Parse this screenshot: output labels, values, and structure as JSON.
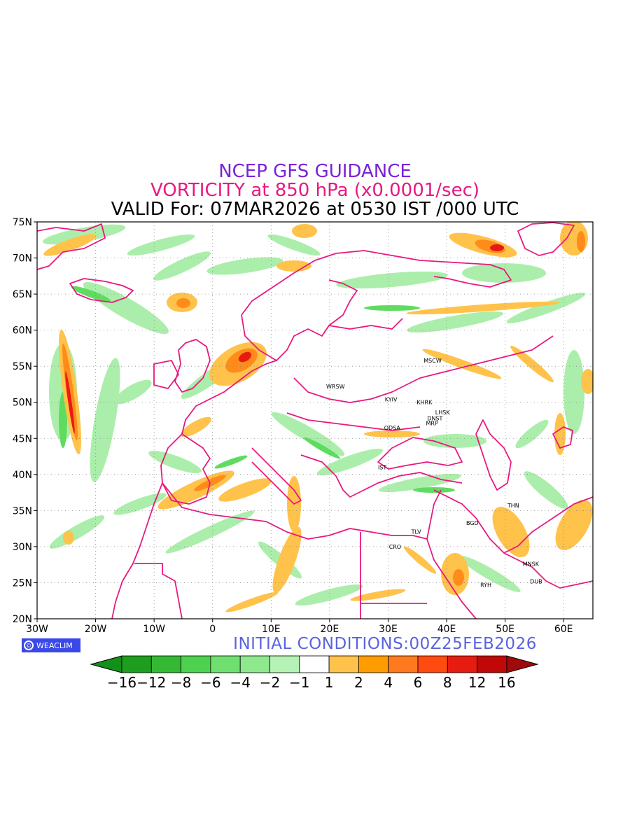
{
  "titles": {
    "line1": "NCEP GFS GUIDANCE",
    "line2": "VORTICITY at 850 hPa (x0.0001/sec)",
    "line3": "VALID For: 07MAR2026 at 0530 IST /000 UTC"
  },
  "colors": {
    "title1": "#7b22d9",
    "title2": "#e8197f",
    "title3": "#000000",
    "coastline": "#e8197f",
    "init": "#5a63e0",
    "brand_bg": "#3a48e8"
  },
  "map": {
    "lon_range": [
      -30,
      65
    ],
    "lat_range": [
      20,
      75
    ],
    "x_ticks": [
      "30W",
      "20W",
      "10W",
      "0",
      "10E",
      "20E",
      "30E",
      "40E",
      "50E",
      "60E"
    ],
    "y_ticks": [
      "75N",
      "70N",
      "65N",
      "60N",
      "55N",
      "50N",
      "45N",
      "40N",
      "35N",
      "30N",
      "25N",
      "20N"
    ],
    "x_tick_values": [
      -30,
      -20,
      -10,
      0,
      10,
      20,
      30,
      40,
      50,
      60
    ],
    "y_tick_values": [
      75,
      70,
      65,
      60,
      55,
      50,
      45,
      40,
      35,
      30,
      25,
      20
    ],
    "grid": "dotted",
    "cities": [
      {
        "name": "MSCW",
        "lon": 37.6,
        "lat": 55.8
      },
      {
        "name": "WRSW",
        "lon": 21.0,
        "lat": 52.2
      },
      {
        "name": "KYIV",
        "lon": 30.5,
        "lat": 50.4
      },
      {
        "name": "KHRK",
        "lon": 36.2,
        "lat": 50.0
      },
      {
        "name": "LHSK",
        "lon": 39.3,
        "lat": 48.6
      },
      {
        "name": "DNST",
        "lon": 38.0,
        "lat": 47.8
      },
      {
        "name": "MRP",
        "lon": 37.5,
        "lat": 47.1
      },
      {
        "name": "ODSA",
        "lon": 30.7,
        "lat": 46.5
      },
      {
        "name": "IST",
        "lon": 29.0,
        "lat": 41.0
      },
      {
        "name": "THN",
        "lon": 51.4,
        "lat": 35.7
      },
      {
        "name": "BGD",
        "lon": 44.4,
        "lat": 33.3
      },
      {
        "name": "TLV",
        "lon": 34.8,
        "lat": 32.1
      },
      {
        "name": "CRO",
        "lon": 31.2,
        "lat": 30.0
      },
      {
        "name": "MNSK",
        "lon": 54.4,
        "lat": 27.6
      },
      {
        "name": "DUB",
        "lon": 55.3,
        "lat": 25.2
      },
      {
        "name": "RYH",
        "lon": 46.7,
        "lat": 24.7
      }
    ]
  },
  "footer": {
    "brand": "WEACLIM",
    "initial_conditions": "INITIAL CONDITIONS:00Z25FEB2026"
  },
  "colorbar": {
    "labels": [
      "−16",
      "−12",
      "−8",
      "−6",
      "−4",
      "−2",
      "−1",
      "1",
      "2",
      "4",
      "6",
      "8",
      "12",
      "16"
    ],
    "colors": [
      "#1e9e1e",
      "#35b935",
      "#4ed14e",
      "#6fe06f",
      "#8ee98e",
      "#b5f2b5",
      "#ffffff",
      "#ffc24a",
      "#ff9d00",
      "#ff7a1f",
      "#ff4a10",
      "#e61c10",
      "#c00808"
    ],
    "end_left": "#12901a",
    "end_right": "#a00a0a"
  }
}
